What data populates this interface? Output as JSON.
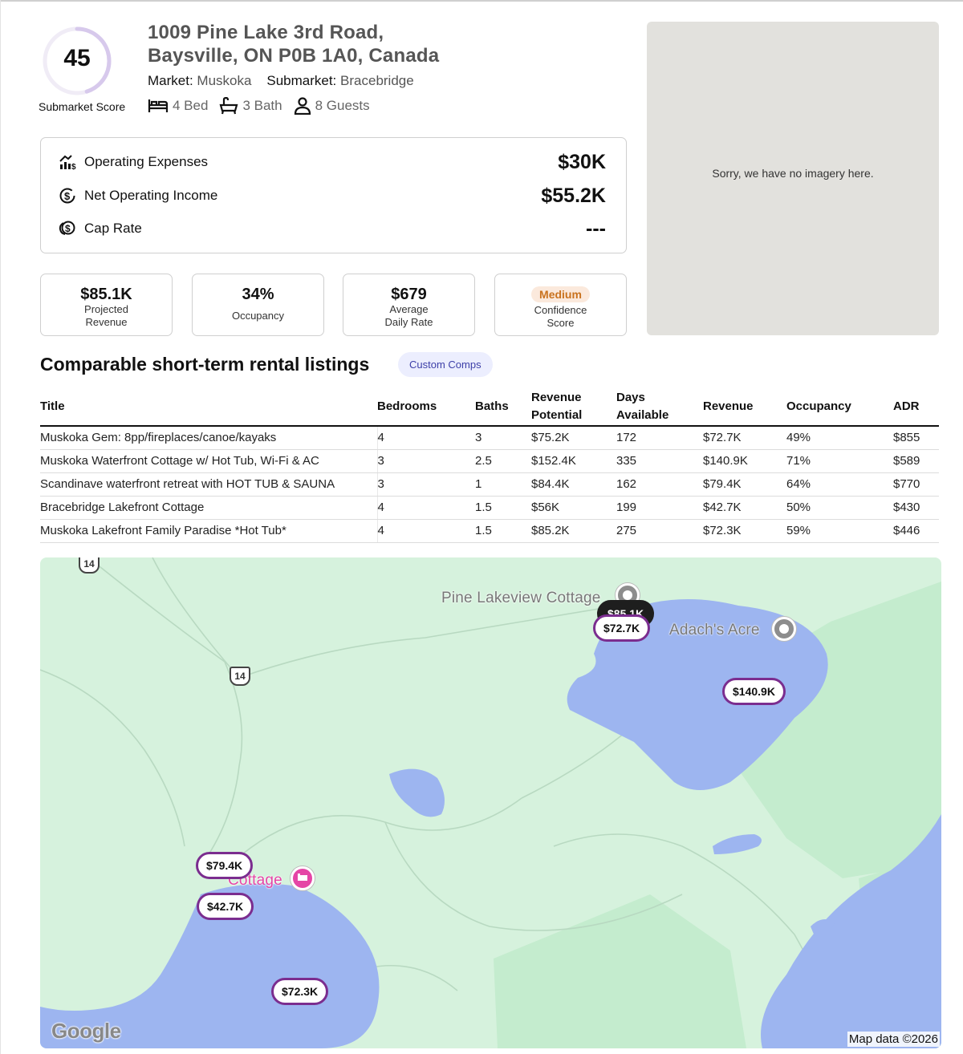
{
  "score": {
    "value": "45",
    "label": "Submarket Score",
    "fraction": 0.45
  },
  "property": {
    "address_line1": "1009 Pine Lake 3rd Road,",
    "address_line2": "Baysville, ON P0B 1A0, Canada",
    "market_label": "Market:",
    "market_value": "Muskoka",
    "submarket_label": "Submarket:",
    "submarket_value": "Bracebridge",
    "beds": "4 Bed",
    "baths": "3 Bath",
    "guests": "8 Guests"
  },
  "metrics": [
    {
      "label": "Operating Expenses",
      "value": "$30K",
      "icon": "chart-dollar-icon"
    },
    {
      "label": "Net Operating Income",
      "value": "$55.2K",
      "icon": "dollar-cycle-icon"
    },
    {
      "label": "Cap Rate",
      "value": "---",
      "icon": "coins-icon"
    }
  ],
  "cards": [
    {
      "big": "$85.1K",
      "line1": "Projected",
      "line2": "Revenue"
    },
    {
      "big": "34%",
      "line1": "Occupancy",
      "line2": ""
    },
    {
      "big": "$679",
      "line1": "Average",
      "line2": "Daily Rate"
    },
    {
      "badge": "Medium",
      "line1": "Confidence",
      "line2": "Score"
    }
  ],
  "imagery": {
    "message": "Sorry, we have no imagery here."
  },
  "comps": {
    "title": "Comparable short-term rental listings",
    "button": "Custom Comps",
    "headers": {
      "title": "Title",
      "bedrooms": "Bedrooms",
      "baths": "Baths",
      "revenue_potential_1": "Revenue",
      "revenue_potential_2": "Potential",
      "days_available_1": "Days",
      "days_available_2": "Available",
      "revenue": "Revenue",
      "occupancy": "Occupancy",
      "adr": "ADR"
    },
    "rows": [
      {
        "title": "Muskoka Gem: 8pp/fireplaces/canoe/kayaks",
        "bedrooms": "4",
        "baths": "3",
        "potential": "$75.2K",
        "days": "172",
        "revenue": "$72.7K",
        "occupancy": "49%",
        "adr": "$855"
      },
      {
        "title": "Muskoka Waterfront Cottage w/ Hot Tub, Wi-Fi & AC",
        "bedrooms": "3",
        "baths": "2.5",
        "potential": "$152.4K",
        "days": "335",
        "revenue": "$140.9K",
        "occupancy": "71%",
        "adr": "$589"
      },
      {
        "title": "Scandinave waterfront retreat with HOT TUB & SAUNA",
        "bedrooms": "3",
        "baths": "1",
        "potential": "$84.4K",
        "days": "162",
        "revenue": "$79.4K",
        "occupancy": "64%",
        "adr": "$770"
      },
      {
        "title": "Bracebridge Lakefront Cottage",
        "bedrooms": "4",
        "baths": "1.5",
        "potential": "$56K",
        "days": "199",
        "revenue": "$42.7K",
        "occupancy": "50%",
        "adr": "$430"
      },
      {
        "title": "Muskoka Lakefront Family Paradise *Hot Tub*",
        "bedrooms": "4",
        "baths": "1.5",
        "potential": "$85.2K",
        "days": "275",
        "revenue": "$72.3K",
        "occupancy": "59%",
        "adr": "$446"
      }
    ]
  },
  "map": {
    "places": {
      "pine_lakeview": "Pine Lakeview Cottage",
      "adachs_acre": "Adach's Acre",
      "cottage": "Cottage"
    },
    "highway_top": "14",
    "highway_mid": "14",
    "prices": {
      "subject": "$85.1K",
      "p1": "$72.7K",
      "p2": "$140.9K",
      "p3": "$79.4K",
      "p4": "$42.7K",
      "p5": "$72.3K"
    },
    "logo": "Google",
    "attribution": "Map data ©2026",
    "colors": {
      "land": "#d6f2dd",
      "water": "#9db5f0",
      "park": "#c2ebcd",
      "price_border": "#7b2d8f"
    }
  }
}
